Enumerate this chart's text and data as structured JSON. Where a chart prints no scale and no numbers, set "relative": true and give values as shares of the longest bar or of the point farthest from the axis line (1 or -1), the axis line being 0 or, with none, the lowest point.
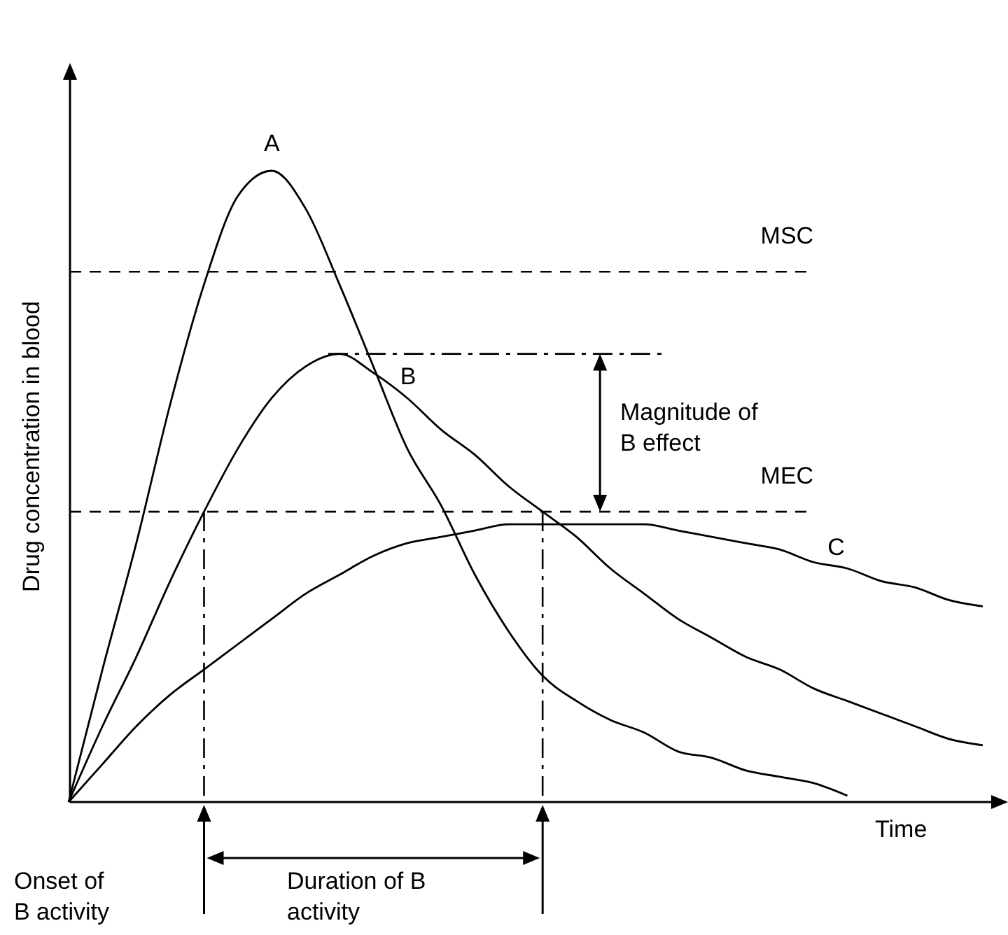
{
  "chart_data": {
    "type": "line",
    "relative": true,
    "ylabel": "Drug concentration in blood",
    "xlabel": "Time",
    "categories": [
      null,
      null,
      null,
      null,
      null,
      null,
      null,
      null,
      null,
      null,
      null,
      null,
      null,
      null,
      null,
      null,
      null,
      null,
      null,
      null,
      null,
      null,
      null,
      null,
      null,
      null,
      null,
      null
    ],
    "series": [
      {
        "name": "A",
        "color": "#000000",
        "values": [
          0,
          0.21,
          0.41,
          0.63,
          0.82,
          0.96,
          1,
          0.94,
          0.82,
          0.69,
          0.56,
          0.47,
          0.36,
          0.27,
          0.2,
          0.16,
          0.13,
          0.11,
          0.08,
          0.07,
          0.05,
          0.04,
          0.03,
          0.01,
          null,
          null,
          null,
          null
        ]
      },
      {
        "name": "B",
        "color": "#000000",
        "values": [
          0,
          0.12,
          0.23,
          0.35,
          0.46,
          0.56,
          0.64,
          0.69,
          0.71,
          0.68,
          0.64,
          0.59,
          0.55,
          0.5,
          0.46,
          0.42,
          0.37,
          0.33,
          0.29,
          0.26,
          0.23,
          0.21,
          0.18,
          0.16,
          0.14,
          0.12,
          0.1,
          0.09
        ]
      },
      {
        "name": "C",
        "color": "#000000",
        "values": [
          0,
          0.06,
          0.12,
          0.17,
          0.21,
          0.25,
          0.29,
          0.33,
          0.36,
          0.39,
          0.41,
          0.42,
          0.43,
          0.44,
          0.44,
          0.44,
          0.44,
          0.44,
          0.43,
          0.42,
          0.41,
          0.4,
          0.38,
          0.37,
          0.35,
          0.34,
          0.32,
          0.31
        ]
      }
    ],
    "ref_lines": [
      {
        "axis": "y",
        "value": 0.84,
        "label": "MSC",
        "line_style": "dashed"
      },
      {
        "axis": "y",
        "value": 0.46,
        "label": "MEC",
        "line_style": "dashed"
      },
      {
        "axis": "y",
        "value": 0.71,
        "line_style": "dashdot"
      }
    ],
    "annotations": [
      "Magnitude of\nB effect",
      "Onset of\nB activity",
      "Duration of B\nactivity"
    ]
  }
}
